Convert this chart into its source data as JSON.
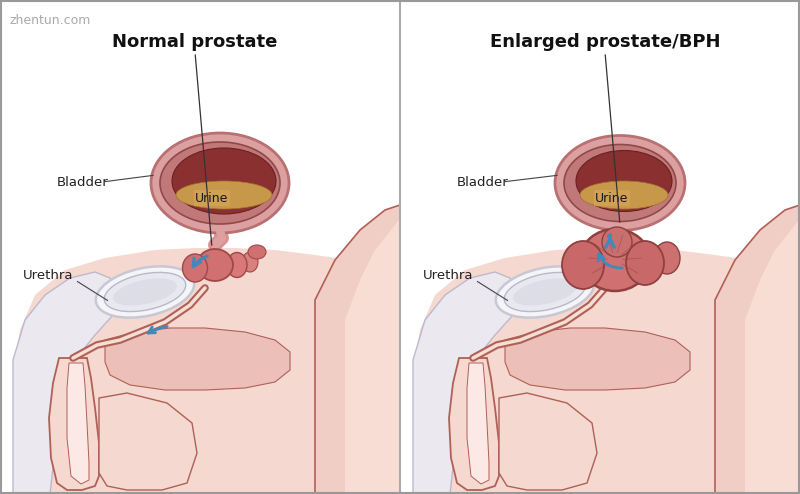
{
  "bg_color": "#ffffff",
  "border_color": "#999999",
  "figure_width": 8.0,
  "figure_height": 4.94,
  "dpi": 100,
  "watermark": "zhentun.com",
  "watermark_color": "#aaaaaa",
  "watermark_fontsize": 9,
  "left_title": "Normal prostate",
  "right_title": "Enlarged prostate/BPH",
  "title_fontsize": 13,
  "label_fontsize": 9.5,
  "skin_light": "#f5d8d0",
  "skin_pink": "#ecc0b8",
  "skin_dark_line": "#b06055",
  "hip_color": "#f0cdc5",
  "bladder_wall": "#d89090",
  "bladder_inner_wall": "#c07070",
  "bladder_interior": "#8b3535",
  "urine_color": "#c8984a",
  "prostate_pink": "#d07070",
  "prostate_edge": "#a05050",
  "pubic_fill": "#eeeeee",
  "pubic_edge": "#cccccc",
  "arrow_color": "#4488bb",
  "line_color": "#333333",
  "divider_color": "#aaaaaa",
  "label_color": "#222222"
}
